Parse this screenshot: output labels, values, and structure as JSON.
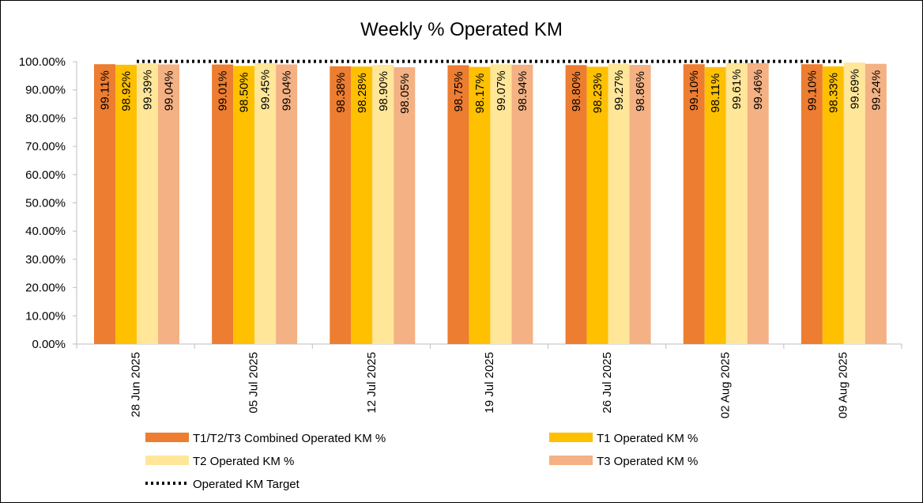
{
  "chart_data": {
    "type": "bar",
    "title": "Weekly % Operated KM",
    "xlabel": "",
    "ylabel": "",
    "ylim": [
      0,
      100
    ],
    "y_tick_step": 10,
    "y_tick_labels": [
      "0.00%",
      "10.00%",
      "20.00%",
      "30.00%",
      "40.00%",
      "50.00%",
      "60.00%",
      "70.00%",
      "80.00%",
      "90.00%",
      "100.00%"
    ],
    "categories": [
      "28 Jun 2025",
      "05 Jul 2025",
      "12 Jul 2025",
      "19 Jul 2025",
      "26 Jul 2025",
      "02 Aug 2025",
      "09 Aug 2025"
    ],
    "series": [
      {
        "name": "T1/T2/T3 Combined Operated KM %",
        "color": "#ED7D31",
        "values": [
          99.11,
          99.01,
          98.38,
          98.75,
          98.8,
          99.1,
          99.1
        ],
        "labels": [
          "99.11%",
          "99.01%",
          "98.38%",
          "98.75%",
          "98.80%",
          "99.10%",
          "99.10%"
        ]
      },
      {
        "name": "T1 Operated KM %",
        "color": "#FFC000",
        "values": [
          98.92,
          98.5,
          98.28,
          98.17,
          98.23,
          98.11,
          98.33
        ],
        "labels": [
          "98.92%",
          "98.50%",
          "98.28%",
          "98.17%",
          "98.23%",
          "98.11%",
          "98.33%"
        ]
      },
      {
        "name": "T2 Operated KM %",
        "color": "#FFE699",
        "values": [
          99.39,
          99.45,
          98.9,
          99.07,
          99.27,
          99.61,
          99.69
        ],
        "labels": [
          "99.39%",
          "99.45%",
          "98.90%",
          "99.07%",
          "99.27%",
          "99.61%",
          "99.69%"
        ]
      },
      {
        "name": "T3 Operated KM %",
        "color": "#F4B183",
        "values": [
          99.04,
          99.04,
          98.05,
          98.94,
          98.86,
          99.46,
          99.24
        ],
        "labels": [
          "99.04%",
          "99.04%",
          "98.05%",
          "98.94%",
          "98.86%",
          "99.46%",
          "99.24%"
        ]
      }
    ],
    "target": {
      "name": "Operated KM Target",
      "value": 99.0,
      "style": "dotted",
      "color": "#000000"
    },
    "grid": false,
    "legend_position": "bottom"
  }
}
